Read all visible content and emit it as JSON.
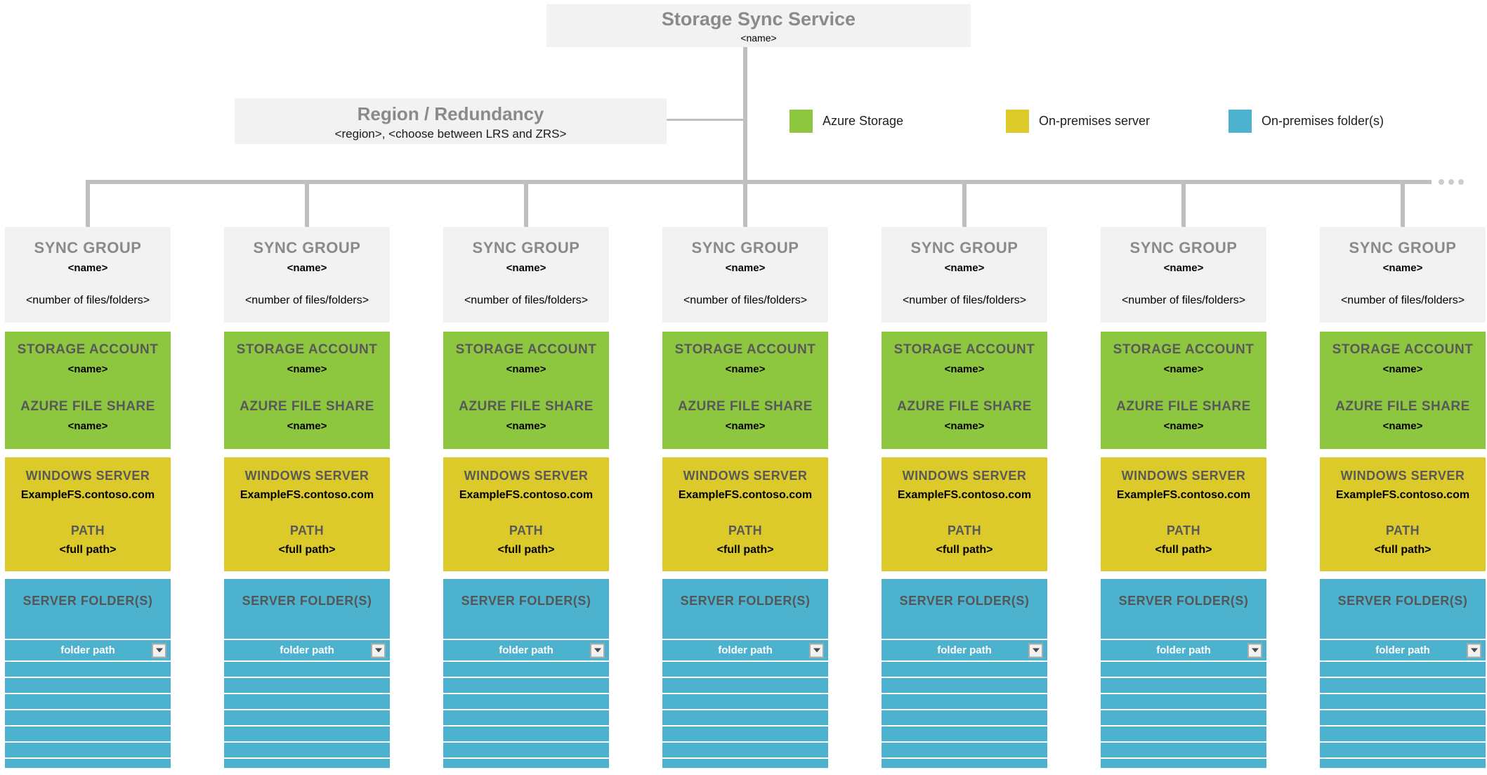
{
  "title_box": {
    "title": "Storage Sync Service",
    "name_placeholder": "<name>"
  },
  "region_box": {
    "title": "Region / Redundancy",
    "details_placeholder": "<region>, <choose between LRS and ZRS>"
  },
  "legend": {
    "items": [
      {
        "label": "Azure Storage",
        "color": "#8DC63F"
      },
      {
        "label": "On-premises server",
        "color": "#DCC92A"
      },
      {
        "label": "On-premises folder(s)",
        "color": "#4DB2CD"
      }
    ]
  },
  "sync_groups": {
    "count": 7,
    "more_indicator_dots": 3,
    "column": {
      "header": "SYNC GROUP",
      "name_placeholder": "<name>",
      "count_placeholder": "<number of files/folders>",
      "storage_account_label": "STORAGE ACCOUNT",
      "storage_account_name": "<name>",
      "file_share_label": "AZURE FILE SHARE",
      "file_share_name": "<name>",
      "windows_server_label": "WINDOWS SERVER",
      "windows_server_name": "ExampleFS.contoso.com",
      "path_label": "PATH",
      "path_value": "<full path>",
      "server_folders_label": "SERVER FOLDER(S)",
      "folder_path_value": "folder path",
      "empty_row_count": 8
    }
  },
  "colors": {
    "azure_storage_green": "#8DC63F",
    "on_premises_server_yellow": "#DCC92A",
    "on_premises_folder_blue": "#4DB2CD",
    "box_gray": "#F2F2F2",
    "connector_gray": "#BFBFBF"
  }
}
